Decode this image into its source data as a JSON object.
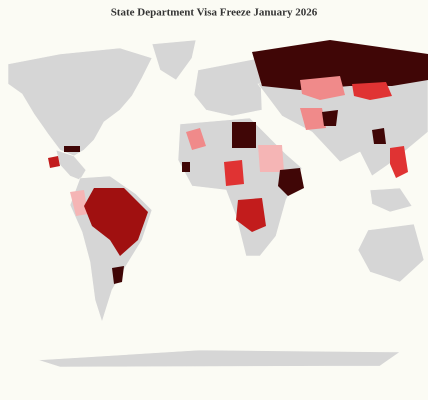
{
  "header": {
    "title": "State Department Visa Freeze January 2026"
  }
}
